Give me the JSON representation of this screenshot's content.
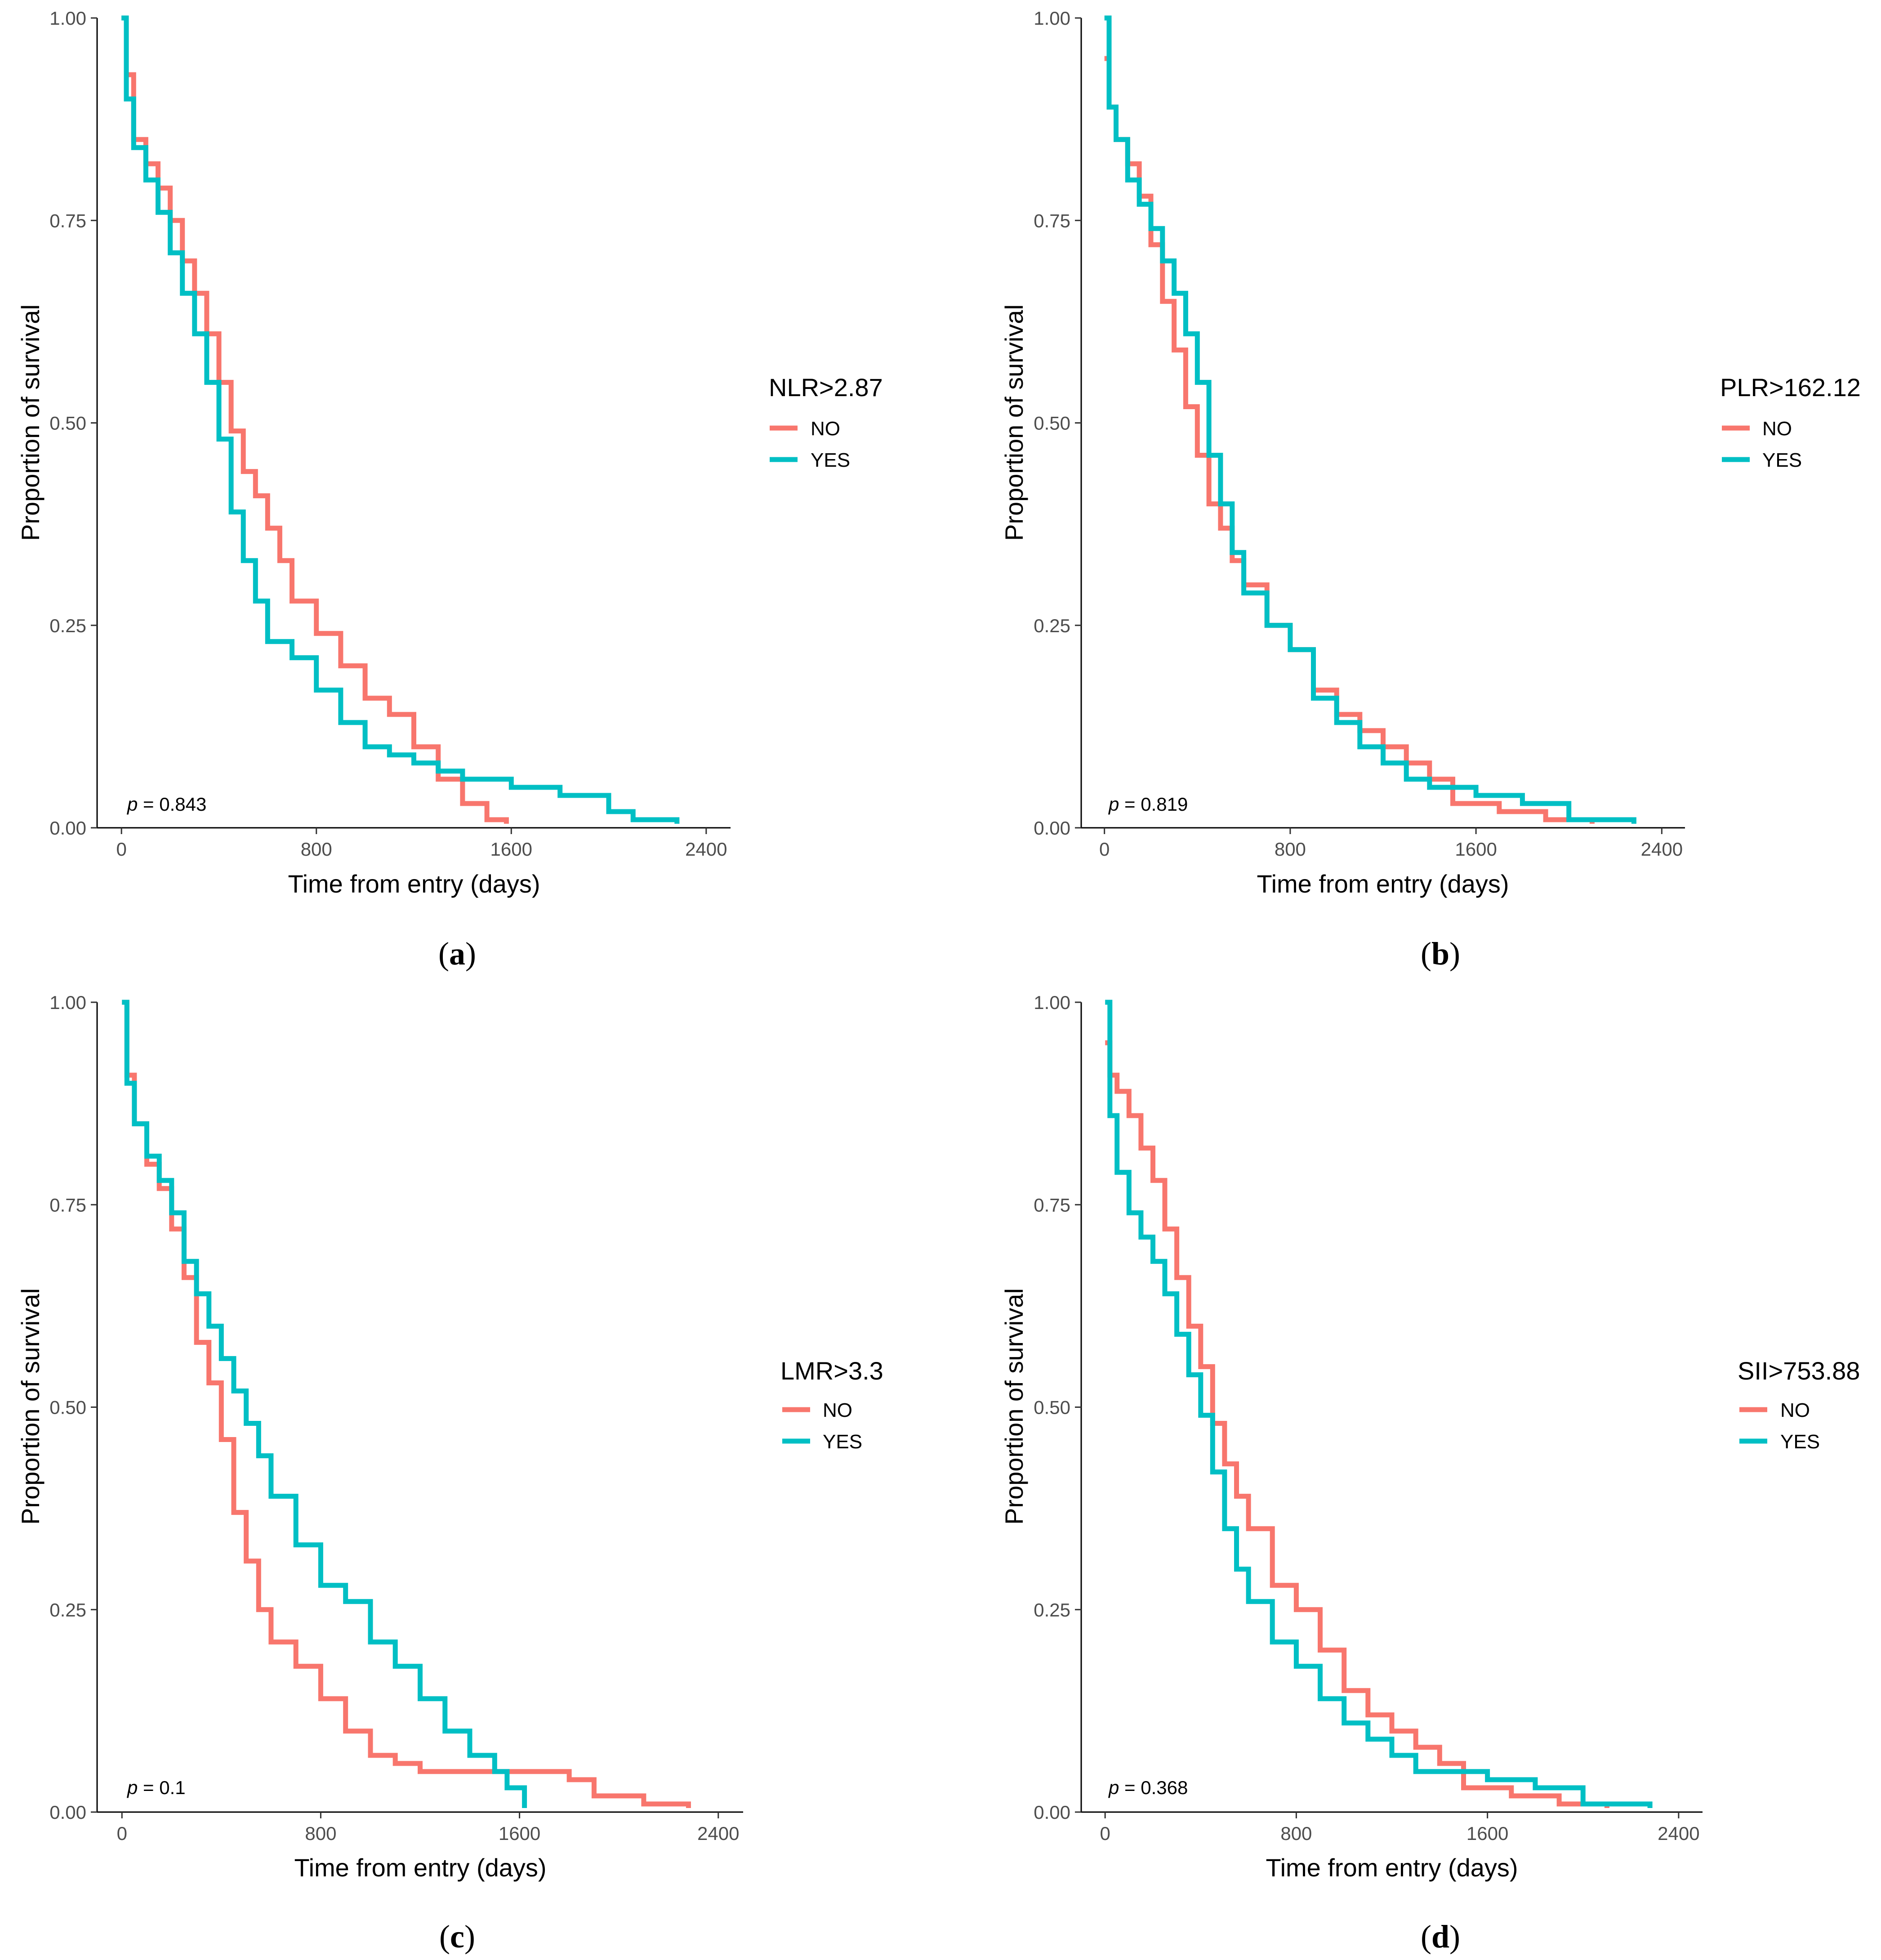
{
  "colors": {
    "NO": "#F8766D",
    "YES": "#00BFC4"
  },
  "chart_data": [
    {
      "type": "line",
      "panel_label": "a",
      "xlabel": "Time from entry (days)",
      "ylabel": "Proportion of survival",
      "xlim": [
        -100,
        2500
      ],
      "ylim": [
        0,
        1
      ],
      "xticks": [
        0,
        800,
        1600,
        2400
      ],
      "xtick_labels": [
        "0",
        "800",
        "1600",
        "2400"
      ],
      "yticks": [
        0,
        0.25,
        0.5,
        0.75,
        1
      ],
      "ytick_labels": [
        "0.00",
        "0.25",
        "0.50",
        "0.75",
        "1.00"
      ],
      "legend_title": "NLR>2.87",
      "pvalue_label": "p",
      "pvalue_text": " = 0.843",
      "series": [
        {
          "name": "NO",
          "x": [
            0,
            20,
            50,
            100,
            150,
            200,
            250,
            300,
            350,
            400,
            450,
            500,
            550,
            600,
            650,
            700,
            800,
            900,
            1000,
            1100,
            1200,
            1300,
            1400,
            1500,
            1580
          ],
          "y": [
            1.0,
            0.93,
            0.85,
            0.82,
            0.79,
            0.75,
            0.7,
            0.66,
            0.61,
            0.55,
            0.49,
            0.44,
            0.41,
            0.37,
            0.33,
            0.28,
            0.24,
            0.2,
            0.16,
            0.14,
            0.1,
            0.06,
            0.03,
            0.01,
            0.005
          ]
        },
        {
          "name": "YES",
          "x": [
            0,
            20,
            50,
            100,
            150,
            200,
            250,
            300,
            350,
            400,
            450,
            500,
            550,
            600,
            700,
            800,
            900,
            1000,
            1100,
            1200,
            1300,
            1400,
            1600,
            1800,
            2000,
            2100,
            2280
          ],
          "y": [
            1.0,
            0.9,
            0.84,
            0.8,
            0.76,
            0.71,
            0.66,
            0.61,
            0.55,
            0.48,
            0.39,
            0.33,
            0.28,
            0.23,
            0.21,
            0.17,
            0.13,
            0.1,
            0.09,
            0.08,
            0.07,
            0.06,
            0.05,
            0.04,
            0.02,
            0.01,
            0.005
          ]
        }
      ]
    },
    {
      "type": "line",
      "panel_label": "b",
      "xlabel": "Time from entry (days)",
      "ylabel": "Proportion of survival",
      "xlim": [
        -100,
        2500
      ],
      "ylim": [
        0,
        1
      ],
      "xticks": [
        0,
        800,
        1600,
        2400
      ],
      "xtick_labels": [
        "0",
        "800",
        "1600",
        "2400"
      ],
      "yticks": [
        0,
        0.25,
        0.5,
        0.75,
        1
      ],
      "ytick_labels": [
        "0.00",
        "0.25",
        "0.50",
        "0.75",
        "1.00"
      ],
      "legend_title": "PLR>162.12",
      "pvalue_label": "p",
      "pvalue_text": " = 0.819",
      "series": [
        {
          "name": "NO",
          "x": [
            0,
            20,
            50,
            100,
            150,
            200,
            250,
            300,
            350,
            400,
            450,
            500,
            550,
            600,
            700,
            800,
            900,
            1000,
            1100,
            1200,
            1300,
            1400,
            1500,
            1700,
            1900,
            2100
          ],
          "y": [
            0.95,
            0.89,
            0.85,
            0.82,
            0.78,
            0.72,
            0.65,
            0.59,
            0.52,
            0.46,
            0.4,
            0.37,
            0.33,
            0.3,
            0.25,
            0.22,
            0.17,
            0.14,
            0.12,
            0.1,
            0.08,
            0.06,
            0.03,
            0.02,
            0.01,
            0.005
          ]
        },
        {
          "name": "YES",
          "x": [
            0,
            20,
            50,
            100,
            150,
            200,
            250,
            300,
            350,
            400,
            450,
            500,
            550,
            600,
            700,
            800,
            900,
            1000,
            1100,
            1200,
            1300,
            1400,
            1600,
            1800,
            2000,
            2280
          ],
          "y": [
            1.0,
            0.89,
            0.85,
            0.8,
            0.77,
            0.74,
            0.7,
            0.66,
            0.61,
            0.55,
            0.46,
            0.4,
            0.34,
            0.29,
            0.25,
            0.22,
            0.16,
            0.13,
            0.1,
            0.08,
            0.06,
            0.05,
            0.04,
            0.03,
            0.01,
            0.005
          ]
        }
      ]
    },
    {
      "type": "line",
      "panel_label": "c",
      "xlabel": "Time from entry (days)",
      "ylabel": "Proportion of survival",
      "xlim": [
        -100,
        2500
      ],
      "ylim": [
        0,
        1
      ],
      "xticks": [
        0,
        800,
        1600,
        2400
      ],
      "xtick_labels": [
        "0",
        "800",
        "1600",
        "2400"
      ],
      "yticks": [
        0,
        0.25,
        0.5,
        0.75,
        1
      ],
      "ytick_labels": [
        "0.00",
        "0.25",
        "0.50",
        "0.75",
        "1.00"
      ],
      "legend_title": "LMR>3.3",
      "pvalue_label": "p",
      "pvalue_text": " = 0.1",
      "series": [
        {
          "name": "NO",
          "x": [
            0,
            20,
            50,
            100,
            150,
            200,
            250,
            300,
            350,
            400,
            450,
            500,
            550,
            600,
            700,
            800,
            900,
            1000,
            1100,
            1200,
            1300,
            1400,
            1600,
            1800,
            1900,
            2100,
            2280
          ],
          "y": [
            1.0,
            0.91,
            0.85,
            0.8,
            0.77,
            0.72,
            0.66,
            0.58,
            0.53,
            0.46,
            0.37,
            0.31,
            0.25,
            0.21,
            0.18,
            0.14,
            0.1,
            0.07,
            0.06,
            0.05,
            0.05,
            0.05,
            0.05,
            0.04,
            0.02,
            0.01,
            0.005
          ]
        },
        {
          "name": "YES",
          "x": [
            0,
            20,
            50,
            100,
            150,
            200,
            250,
            300,
            350,
            400,
            450,
            500,
            550,
            600,
            700,
            800,
            900,
            1000,
            1100,
            1200,
            1300,
            1400,
            1500,
            1550,
            1620
          ],
          "y": [
            1.0,
            0.9,
            0.85,
            0.81,
            0.78,
            0.74,
            0.68,
            0.64,
            0.6,
            0.56,
            0.52,
            0.48,
            0.44,
            0.39,
            0.33,
            0.28,
            0.26,
            0.21,
            0.18,
            0.14,
            0.1,
            0.07,
            0.05,
            0.03,
            0.005
          ]
        }
      ]
    },
    {
      "type": "line",
      "panel_label": "d",
      "xlabel": "Time from entry (days)",
      "ylabel": "Proportion of survival",
      "xlim": [
        -100,
        2500
      ],
      "ylim": [
        0,
        1
      ],
      "xticks": [
        0,
        800,
        1600,
        2400
      ],
      "xtick_labels": [
        "0",
        "800",
        "1600",
        "2400"
      ],
      "yticks": [
        0,
        0.25,
        0.5,
        0.75,
        1
      ],
      "ytick_labels": [
        "0.00",
        "0.25",
        "0.50",
        "0.75",
        "1.00"
      ],
      "legend_title": "SII>753.88",
      "pvalue_label": "p",
      "pvalue_text": " = 0.368",
      "series": [
        {
          "name": "NO",
          "x": [
            0,
            20,
            50,
            100,
            150,
            200,
            250,
            300,
            350,
            400,
            450,
            500,
            550,
            600,
            700,
            800,
            900,
            1000,
            1100,
            1200,
            1300,
            1400,
            1500,
            1700,
            1900,
            2100
          ],
          "y": [
            0.95,
            0.91,
            0.89,
            0.86,
            0.82,
            0.78,
            0.72,
            0.66,
            0.6,
            0.55,
            0.48,
            0.43,
            0.39,
            0.35,
            0.28,
            0.25,
            0.2,
            0.15,
            0.12,
            0.1,
            0.08,
            0.06,
            0.03,
            0.02,
            0.01,
            0.005
          ]
        },
        {
          "name": "YES",
          "x": [
            0,
            20,
            50,
            100,
            150,
            200,
            250,
            300,
            350,
            400,
            450,
            500,
            550,
            600,
            700,
            800,
            900,
            1000,
            1100,
            1200,
            1300,
            1400,
            1600,
            1800,
            2000,
            2280
          ],
          "y": [
            1.0,
            0.86,
            0.79,
            0.74,
            0.71,
            0.68,
            0.64,
            0.59,
            0.54,
            0.49,
            0.42,
            0.35,
            0.3,
            0.26,
            0.21,
            0.18,
            0.14,
            0.11,
            0.09,
            0.07,
            0.05,
            0.05,
            0.04,
            0.03,
            0.01,
            0.005
          ]
        }
      ]
    }
  ]
}
